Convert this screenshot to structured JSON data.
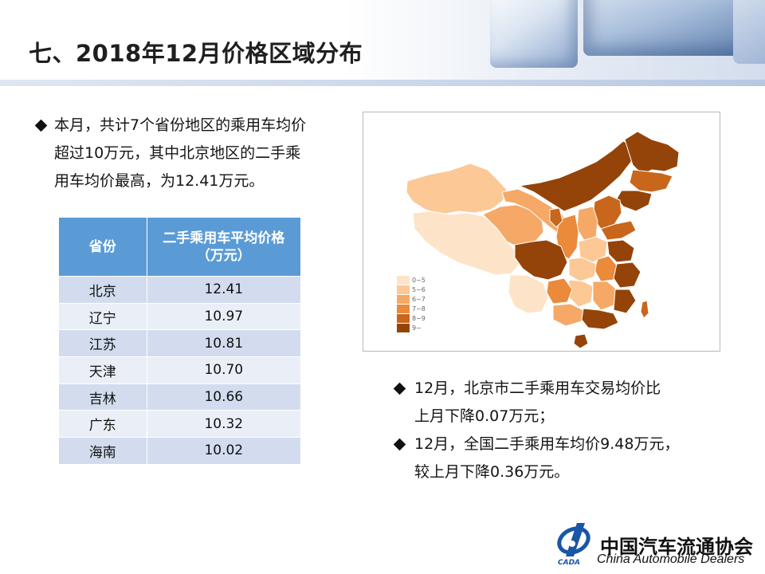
{
  "header": {
    "title": "七、2018年12月价格区域分布"
  },
  "left_bullet": {
    "lines": [
      "本月，共计7个省份地区的乘用车均价",
      "超过10万元，其中北京地区的二手乘",
      "用车均价最高，为12.41万元。"
    ]
  },
  "table": {
    "headers": [
      "省份",
      "二手乘用车平均价格",
      "（万元）"
    ],
    "rows": [
      {
        "province": "北京",
        "price": "12.41"
      },
      {
        "province": "辽宁",
        "price": "10.97"
      },
      {
        "province": "江苏",
        "price": "10.81"
      },
      {
        "province": "天津",
        "price": "10.70"
      },
      {
        "province": "吉林",
        "price": "10.66"
      },
      {
        "province": "广东",
        "price": "10.32"
      },
      {
        "province": "海南",
        "price": "10.02"
      }
    ]
  },
  "map": {
    "legend": [
      {
        "label": "0~5",
        "color": "#fde4c8"
      },
      {
        "label": "5~6",
        "color": "#fbc896"
      },
      {
        "label": "6~7",
        "color": "#f6a866"
      },
      {
        "label": "7~8",
        "color": "#ea8a3a"
      },
      {
        "label": "8~9",
        "color": "#c8661c"
      },
      {
        "label": "9~",
        "color": "#944409"
      }
    ]
  },
  "right_bullets": [
    {
      "lines": [
        "12月，北京市二手乘用车交易均价比",
        "上月下降0.07万元；"
      ]
    },
    {
      "lines": [
        "12月，全国二手乘用车均价9.48万元，",
        "较上月下降0.36万元。"
      ]
    }
  ],
  "footer": {
    "org_cn": "中国汽车流通协会",
    "org_en": "China Automobile Dealers",
    "logo_text": "CADA"
  }
}
